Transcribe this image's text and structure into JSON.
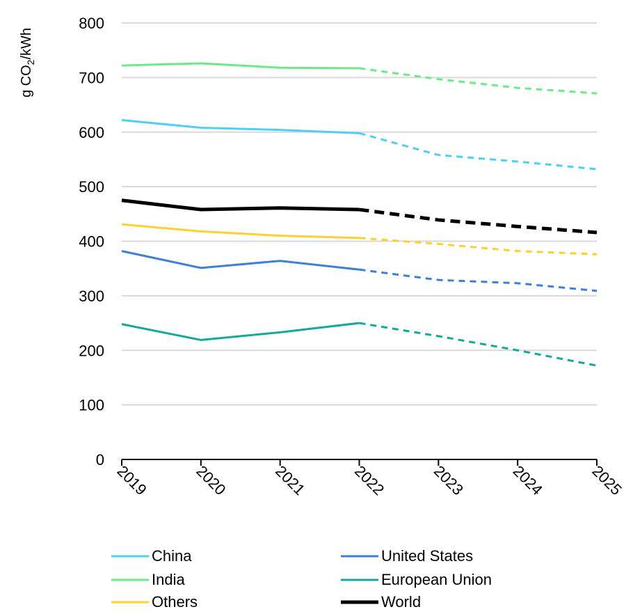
{
  "chart_data": {
    "type": "line",
    "ylabel_main": "g CO",
    "ylabel_sub": "2",
    "ylabel_tail": "/kWh",
    "x": [
      "2019",
      "2020",
      "2021",
      "2022",
      "2023",
      "2024",
      "2025"
    ],
    "ylim": [
      0,
      800
    ],
    "yticks": [
      "0",
      "100",
      "200",
      "300",
      "400",
      "500",
      "600",
      "700",
      "800"
    ],
    "grid": true,
    "projection_start_index": 3,
    "legend_position": "bottom",
    "series": [
      {
        "name": "China",
        "color": "#4fcff5",
        "values": [
          622,
          608,
          604,
          598,
          558,
          546,
          532
        ]
      },
      {
        "name": "United States",
        "color": "#3f7fd6",
        "values": [
          382,
          351,
          364,
          348,
          329,
          323,
          309
        ]
      },
      {
        "name": "India",
        "color": "#6ee98a",
        "values": [
          722,
          726,
          718,
          717,
          697,
          681,
          671
        ]
      },
      {
        "name": "European Union",
        "color": "#14a99a",
        "values": [
          248,
          219,
          233,
          250,
          226,
          200,
          172
        ]
      },
      {
        "name": "Others",
        "color": "#ffd12e",
        "values": [
          431,
          418,
          410,
          406,
          395,
          382,
          376
        ]
      },
      {
        "name": "World",
        "color": "#000000",
        "values": [
          475,
          458,
          461,
          458,
          439,
          427,
          416
        ]
      }
    ]
  }
}
